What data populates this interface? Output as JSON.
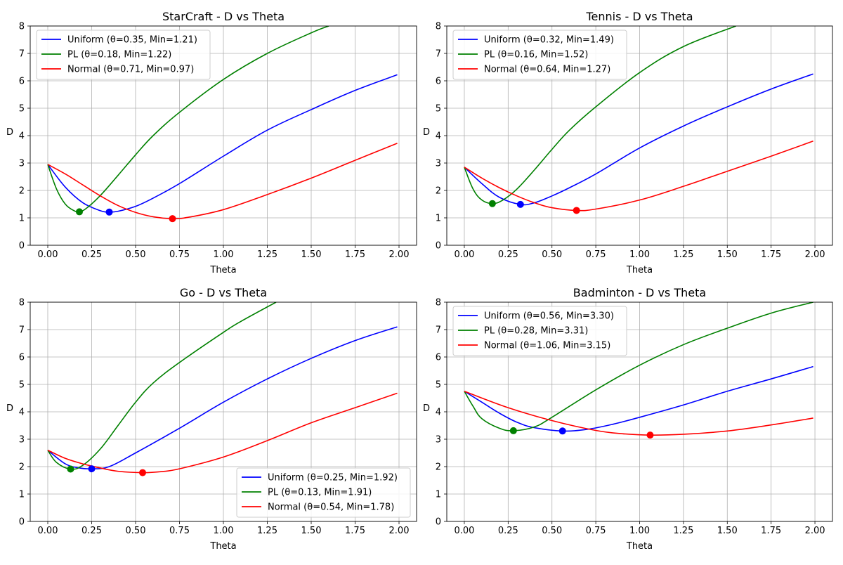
{
  "chart_data": [
    {
      "type": "line",
      "title": "StarCraft - D vs Theta",
      "xlabel": "Theta",
      "ylabel": "D",
      "xlim": [
        -0.1,
        2.1
      ],
      "ylim": [
        0,
        8
      ],
      "xticks": [
        "0.00",
        "0.25",
        "0.50",
        "0.75",
        "1.00",
        "1.25",
        "1.50",
        "1.75",
        "2.00"
      ],
      "yticks": [
        "0",
        "1",
        "2",
        "3",
        "4",
        "5",
        "6",
        "7",
        "8"
      ],
      "grid": true,
      "legend_position": "upper-left",
      "series": [
        {
          "name": "Uniform (θ=0.35, Min=1.21)",
          "color": "#0000ff",
          "x": [
            0,
            0.1,
            0.2,
            0.3,
            0.35,
            0.4,
            0.5,
            0.6,
            0.75,
            1.0,
            1.25,
            1.5,
            1.75,
            1.99
          ],
          "y": [
            2.95,
            2.12,
            1.55,
            1.26,
            1.21,
            1.24,
            1.42,
            1.72,
            2.25,
            3.25,
            4.2,
            4.95,
            5.65,
            6.22
          ],
          "min": {
            "x": 0.35,
            "y": 1.21
          }
        },
        {
          "name": "PL (θ=0.18, Min=1.22)",
          "color": "#008000",
          "x": [
            0,
            0.05,
            0.1,
            0.15,
            0.18,
            0.22,
            0.3,
            0.4,
            0.5,
            0.6,
            0.75,
            1.0,
            1.25,
            1.5,
            1.6
          ],
          "y": [
            2.95,
            2.05,
            1.5,
            1.26,
            1.22,
            1.35,
            1.82,
            2.55,
            3.3,
            4.0,
            4.85,
            6.05,
            7.0,
            7.75,
            8.0
          ],
          "min": {
            "x": 0.18,
            "y": 1.22
          }
        },
        {
          "name": "Normal (θ=0.71, Min=0.97)",
          "color": "#ff0000",
          "x": [
            0,
            0.1,
            0.2,
            0.3,
            0.4,
            0.5,
            0.6,
            0.71,
            0.8,
            1.0,
            1.25,
            1.5,
            1.75,
            1.99
          ],
          "y": [
            2.95,
            2.6,
            2.2,
            1.8,
            1.45,
            1.2,
            1.04,
            0.97,
            1.02,
            1.3,
            1.85,
            2.45,
            3.1,
            3.72
          ],
          "min": {
            "x": 0.71,
            "y": 0.97
          }
        }
      ]
    },
    {
      "type": "line",
      "title": "Tennis - D vs Theta",
      "xlabel": "Theta",
      "ylabel": "D",
      "xlim": [
        -0.1,
        2.1
      ],
      "ylim": [
        0,
        8
      ],
      "xticks": [
        "0.00",
        "0.25",
        "0.50",
        "0.75",
        "1.00",
        "1.25",
        "1.50",
        "1.75",
        "2.00"
      ],
      "yticks": [
        "0",
        "1",
        "2",
        "3",
        "4",
        "5",
        "6",
        "7",
        "8"
      ],
      "grid": true,
      "legend_position": "upper-left",
      "series": [
        {
          "name": "Uniform (θ=0.32, Min=1.49)",
          "color": "#0000ff",
          "x": [
            0,
            0.1,
            0.2,
            0.32,
            0.4,
            0.5,
            0.6,
            0.75,
            1.0,
            1.25,
            1.5,
            1.75,
            1.99
          ],
          "y": [
            2.85,
            2.25,
            1.75,
            1.49,
            1.55,
            1.8,
            2.1,
            2.6,
            3.55,
            4.35,
            5.05,
            5.7,
            6.25
          ],
          "min": {
            "x": 0.32,
            "y": 1.49
          }
        },
        {
          "name": "PL (θ=0.16, Min=1.52)",
          "color": "#008000",
          "x": [
            0,
            0.05,
            0.1,
            0.16,
            0.22,
            0.3,
            0.4,
            0.5,
            0.6,
            0.75,
            1.0,
            1.25,
            1.55
          ],
          "y": [
            2.85,
            2.05,
            1.65,
            1.52,
            1.65,
            2.05,
            2.75,
            3.5,
            4.2,
            5.05,
            6.3,
            7.25,
            8.0
          ],
          "min": {
            "x": 0.16,
            "y": 1.52
          }
        },
        {
          "name": "Normal (θ=0.64, Min=1.27)",
          "color": "#ff0000",
          "x": [
            0,
            0.1,
            0.2,
            0.3,
            0.4,
            0.5,
            0.64,
            0.75,
            1.0,
            1.25,
            1.5,
            1.75,
            1.99
          ],
          "y": [
            2.85,
            2.45,
            2.1,
            1.8,
            1.55,
            1.37,
            1.27,
            1.32,
            1.65,
            2.15,
            2.7,
            3.25,
            3.8
          ],
          "min": {
            "x": 0.64,
            "y": 1.27
          }
        }
      ]
    },
    {
      "type": "line",
      "title": "Go - D vs Theta",
      "xlabel": "Theta",
      "ylabel": "D",
      "xlim": [
        -0.1,
        2.1
      ],
      "ylim": [
        0,
        8
      ],
      "xticks": [
        "0.00",
        "0.25",
        "0.50",
        "0.75",
        "1.00",
        "1.25",
        "1.50",
        "1.75",
        "2.00"
      ],
      "yticks": [
        "0",
        "1",
        "2",
        "3",
        "4",
        "5",
        "6",
        "7",
        "8"
      ],
      "grid": true,
      "legend_position": "lower-right",
      "series": [
        {
          "name": "Uniform (θ=0.25, Min=1.92)",
          "color": "#0000ff",
          "x": [
            0,
            0.1,
            0.18,
            0.25,
            0.35,
            0.5,
            0.75,
            1.0,
            1.25,
            1.5,
            1.75,
            1.99
          ],
          "y": [
            2.6,
            2.1,
            1.95,
            1.92,
            2.0,
            2.5,
            3.4,
            4.35,
            5.2,
            5.95,
            6.6,
            7.1
          ],
          "min": {
            "x": 0.25,
            "y": 1.92
          }
        },
        {
          "name": "PL (θ=0.13, Min=1.91)",
          "color": "#008000",
          "x": [
            0,
            0.05,
            0.13,
            0.2,
            0.3,
            0.4,
            0.5,
            0.6,
            0.75,
            1.0,
            1.1,
            1.3
          ],
          "y": [
            2.6,
            2.15,
            1.91,
            2.05,
            2.65,
            3.5,
            4.35,
            5.05,
            5.8,
            6.9,
            7.3,
            8.0
          ],
          "min": {
            "x": 0.13,
            "y": 1.91
          }
        },
        {
          "name": "Normal (θ=0.54, Min=1.78)",
          "color": "#ff0000",
          "x": [
            0,
            0.1,
            0.2,
            0.3,
            0.4,
            0.54,
            0.65,
            0.75,
            1.0,
            1.25,
            1.5,
            1.75,
            1.99
          ],
          "y": [
            2.6,
            2.3,
            2.1,
            1.95,
            1.83,
            1.78,
            1.82,
            1.92,
            2.35,
            2.95,
            3.6,
            4.15,
            4.68
          ],
          "min": {
            "x": 0.54,
            "y": 1.78
          }
        }
      ]
    },
    {
      "type": "line",
      "title": "Badminton - D vs Theta",
      "xlabel": "Theta",
      "ylabel": "D",
      "xlim": [
        -0.1,
        2.1
      ],
      "ylim": [
        0,
        8
      ],
      "xticks": [
        "0.00",
        "0.25",
        "0.50",
        "0.75",
        "1.00",
        "1.25",
        "1.50",
        "1.75",
        "2.00"
      ],
      "yticks": [
        "0",
        "1",
        "2",
        "3",
        "4",
        "5",
        "6",
        "7",
        "8"
      ],
      "grid": true,
      "legend_position": "upper-left",
      "series": [
        {
          "name": "Uniform (θ=0.56, Min=3.30)",
          "color": "#0000ff",
          "x": [
            0,
            0.1,
            0.2,
            0.3,
            0.4,
            0.56,
            0.7,
            0.85,
            1.0,
            1.25,
            1.5,
            1.75,
            1.99
          ],
          "y": [
            4.75,
            4.35,
            3.95,
            3.62,
            3.42,
            3.3,
            3.36,
            3.55,
            3.8,
            4.25,
            4.75,
            5.2,
            5.65
          ],
          "min": {
            "x": 0.56,
            "y": 3.3
          }
        },
        {
          "name": "PL (θ=0.28, Min=3.31)",
          "color": "#008000",
          "x": [
            0,
            0.05,
            0.1,
            0.2,
            0.28,
            0.4,
            0.5,
            0.75,
            1.0,
            1.25,
            1.5,
            1.75,
            1.99
          ],
          "y": [
            4.75,
            4.2,
            3.75,
            3.4,
            3.31,
            3.45,
            3.8,
            4.8,
            5.7,
            6.45,
            7.05,
            7.6,
            8.0
          ],
          "min": {
            "x": 0.28,
            "y": 3.31
          }
        },
        {
          "name": "Normal (θ=1.06, Min=3.15)",
          "color": "#ff0000",
          "x": [
            0,
            0.25,
            0.5,
            0.75,
            0.9,
            1.06,
            1.25,
            1.5,
            1.75,
            1.99
          ],
          "y": [
            4.75,
            4.15,
            3.68,
            3.32,
            3.2,
            3.15,
            3.18,
            3.3,
            3.52,
            3.77
          ],
          "min": {
            "x": 1.06,
            "y": 3.15
          }
        }
      ]
    }
  ]
}
